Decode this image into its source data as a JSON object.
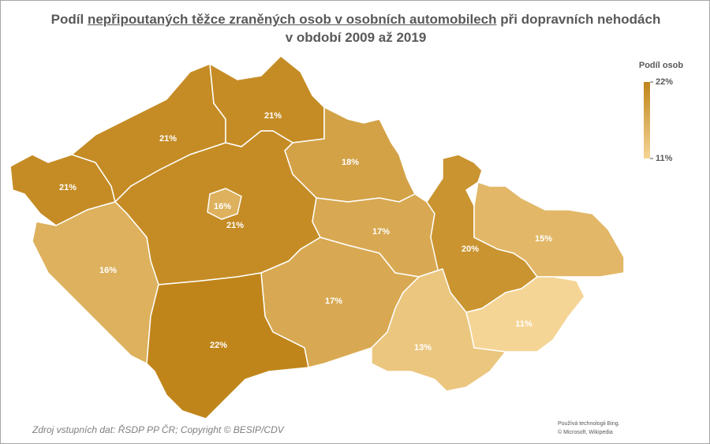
{
  "chart_data": {
    "type": "choropleth",
    "title": [
      {
        "text": "Podíl "
      },
      {
        "text": "nepřipoutaných těžce zraněných osob v osobních automobilech",
        "underline": true
      },
      {
        "text": " při dopravních nehodách v období 2009 až 2019"
      }
    ],
    "values": [
      21,
      21,
      21,
      18,
      16,
      21,
      16,
      17,
      20,
      15,
      17,
      22,
      13,
      11
    ],
    "value_labels": [
      "21%",
      "21%",
      "21%",
      "18%",
      "16%",
      "21%",
      "16%",
      "17%",
      "20%",
      "15%",
      "17%",
      "22%",
      "13%",
      "11%"
    ],
    "colorbar": {
      "title": "Podíl osob",
      "lim": [
        11,
        22
      ],
      "ticks": [
        {
          "value": 22,
          "label": "22%"
        },
        {
          "value": 11,
          "label": "11%"
        }
      ],
      "color_min": "#f5d595",
      "color_max": "#c0851a"
    },
    "source": "Zdroj vstupních dat: ŘSDP PP ČR; Copyright © BESIP/CDV",
    "attribution": [
      "Používá technologii Bing.",
      "© Microsoft, Wikipedia"
    ]
  }
}
